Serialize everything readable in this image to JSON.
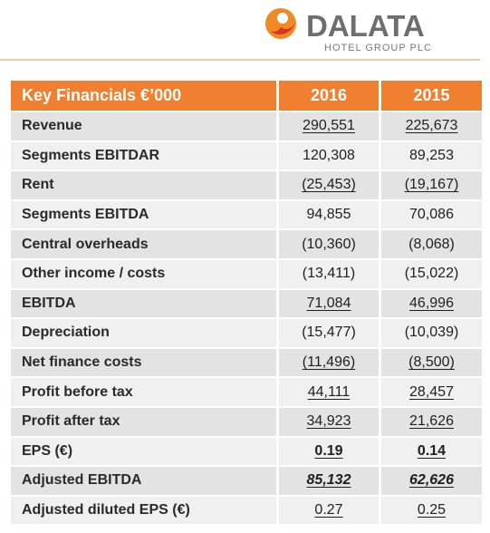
{
  "logo": {
    "name": "DALATA",
    "subtitle": "HOTEL GROUP PLC"
  },
  "table": {
    "header": [
      "Key Financials €’000",
      "2016",
      "2015"
    ],
    "rows": [
      [
        "Revenue",
        "290,551",
        "225,673"
      ],
      [
        "Segments EBITDAR",
        "120,308",
        "89,253"
      ],
      [
        "Rent",
        "(25,453)",
        "(19,167)"
      ],
      [
        "Segments EBITDA",
        "94,855",
        "70,086"
      ],
      [
        "Central overheads",
        "(10,360)",
        "(8,068)"
      ],
      [
        "Other income / costs",
        "(13,411)",
        "(15,022)"
      ],
      [
        "EBITDA",
        "71,084",
        "46,996"
      ],
      [
        "Depreciation",
        "(15,477)",
        "(10,039)"
      ],
      [
        "Net finance costs",
        "(11,496)",
        "(8,500)"
      ],
      [
        "Profit before tax",
        "44,111",
        "28,457"
      ],
      [
        "Profit after tax",
        "34,923",
        "21,626"
      ],
      [
        "EPS (€)",
        "0.19",
        "0.14"
      ],
      [
        "Adjusted EBITDA",
        "85,132",
        "62,626"
      ],
      [
        "Adjusted diluted EPS (€)",
        "0.27",
        "0.25"
      ]
    ]
  }
}
